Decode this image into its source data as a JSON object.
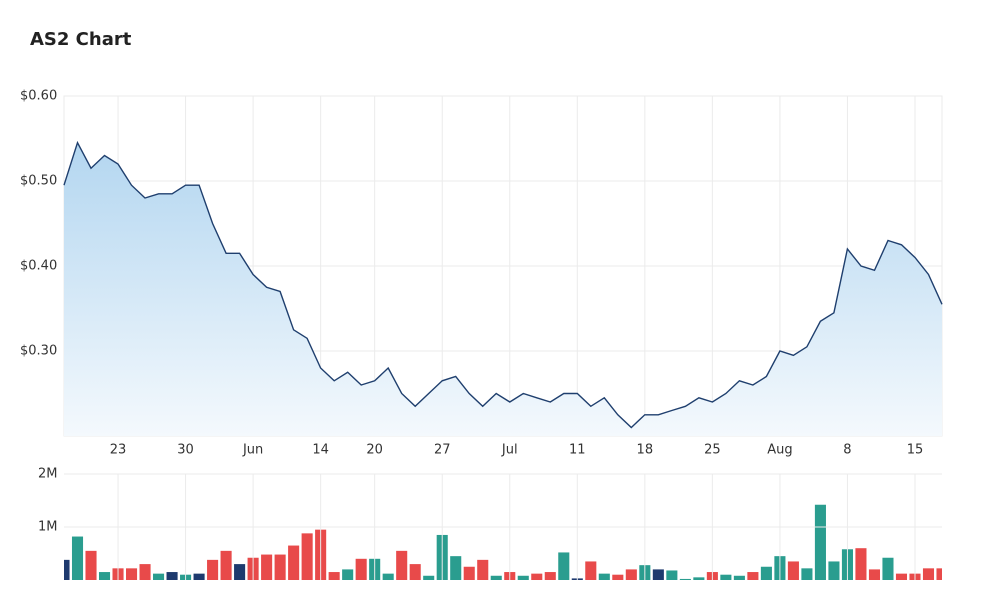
{
  "chart_data": [
    {
      "type": "area",
      "title": "AS2 Chart",
      "categories": [
        null,
        null,
        null,
        null,
        "23",
        null,
        null,
        null,
        null,
        "30",
        null,
        null,
        null,
        null,
        "Jun",
        null,
        null,
        null,
        null,
        "14",
        null,
        null,
        null,
        "20",
        null,
        null,
        null,
        null,
        "27",
        null,
        null,
        null,
        null,
        "Jul",
        null,
        null,
        null,
        null,
        "11",
        null,
        null,
        null,
        null,
        "18",
        null,
        null,
        null,
        null,
        "25",
        null,
        null,
        null,
        null,
        "Aug",
        null,
        null,
        null,
        null,
        "8",
        null,
        null,
        null,
        null,
        "15",
        null,
        null
      ],
      "values": [
        0.495,
        0.545,
        0.515,
        0.53,
        0.52,
        0.495,
        0.48,
        0.485,
        0.485,
        0.495,
        0.495,
        0.45,
        0.415,
        0.415,
        0.39,
        0.375,
        0.37,
        0.325,
        0.315,
        0.28,
        0.265,
        0.275,
        0.26,
        0.265,
        0.28,
        0.25,
        0.235,
        0.25,
        0.265,
        0.27,
        0.25,
        0.235,
        0.25,
        0.24,
        0.25,
        0.245,
        0.24,
        0.25,
        0.25,
        0.235,
        0.245,
        0.225,
        0.21,
        0.225,
        0.225,
        0.23,
        0.235,
        0.245,
        0.24,
        0.25,
        0.265,
        0.26,
        0.27,
        0.3,
        0.295,
        0.305,
        0.335,
        0.345,
        0.42,
        0.4,
        0.395,
        0.43,
        0.425,
        0.41,
        0.39,
        0.355
      ],
      "color": "#1f3f6e",
      "ylim": [
        0.2,
        0.6
      ],
      "yticks": [
        {
          "value": 0.3,
          "label": "$0.30"
        },
        {
          "value": 0.4,
          "label": "$0.40"
        },
        {
          "value": 0.5,
          "label": "$0.50"
        },
        {
          "value": 0.6,
          "label": "$0.60"
        }
      ],
      "grid": true
    },
    {
      "type": "bar",
      "values": [
        380000,
        820000,
        550000,
        150000,
        220000,
        220000,
        300000,
        120000,
        150000,
        100000,
        120000,
        380000,
        550000,
        300000,
        420000,
        480000,
        480000,
        650000,
        880000,
        950000,
        150000,
        200000,
        400000,
        400000,
        120000,
        550000,
        300000,
        80000,
        850000,
        450000,
        250000,
        380000,
        80000,
        150000,
        80000,
        120000,
        150000,
        520000,
        30000,
        350000,
        120000,
        100000,
        200000,
        280000,
        200000,
        180000,
        20000,
        50000,
        150000,
        100000,
        80000,
        150000,
        250000,
        450000,
        350000,
        220000,
        1420000,
        350000,
        580000,
        600000,
        200000,
        420000,
        120000,
        120000,
        220000,
        220000
      ],
      "colors": [
        "#1e3a6e",
        "#2a9d8f",
        "#e84a4a",
        "#2a9d8f",
        "#e84a4a",
        "#e84a4a",
        "#e84a4a",
        "#2a9d8f",
        "#1e3a6e",
        "#2a9d8f",
        "#1e3a6e",
        "#e84a4a",
        "#e84a4a",
        "#1e3a6e",
        "#e84a4a",
        "#e84a4a",
        "#e84a4a",
        "#e84a4a",
        "#e84a4a",
        "#e84a4a",
        "#e84a4a",
        "#2a9d8f",
        "#e84a4a",
        "#2a9d8f",
        "#2a9d8f",
        "#e84a4a",
        "#e84a4a",
        "#2a9d8f",
        "#2a9d8f",
        "#2a9d8f",
        "#e84a4a",
        "#e84a4a",
        "#2a9d8f",
        "#e84a4a",
        "#2a9d8f",
        "#e84a4a",
        "#e84a4a",
        "#2a9d8f",
        "#1e3a6e",
        "#e84a4a",
        "#2a9d8f",
        "#e84a4a",
        "#e84a4a",
        "#2a9d8f",
        "#1e3a6e",
        "#2a9d8f",
        "#2a9d8f",
        "#2a9d8f",
        "#e84a4a",
        "#2a9d8f",
        "#2a9d8f",
        "#e84a4a",
        "#2a9d8f",
        "#2a9d8f",
        "#e84a4a",
        "#2a9d8f",
        "#2a9d8f",
        "#2a9d8f",
        "#2a9d8f",
        "#e84a4a",
        "#e84a4a",
        "#2a9d8f",
        "#e84a4a",
        "#e84a4a",
        "#e84a4a",
        "#e84a4a"
      ],
      "ylim": [
        0,
        2000000
      ],
      "yticks": [
        {
          "value": 1000000,
          "label": "1M"
        },
        {
          "value": 2000000,
          "label": "2M"
        }
      ],
      "grid": true
    }
  ]
}
